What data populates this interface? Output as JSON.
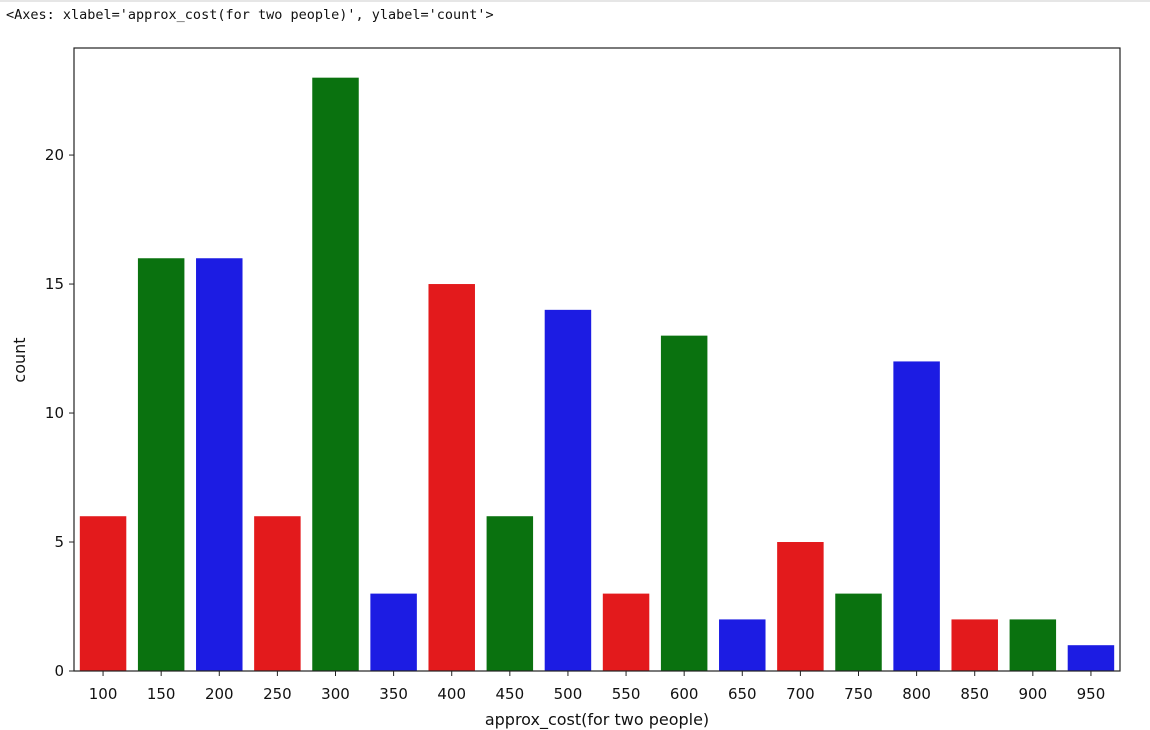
{
  "output_text": "<Axes: xlabel='approx_cost(for two people)', ylabel='count'>",
  "chart_data": {
    "type": "bar",
    "title": "",
    "xlabel": "approx_cost(for two people)",
    "ylabel": "count",
    "categories": [
      "100",
      "150",
      "200",
      "250",
      "300",
      "350",
      "400",
      "450",
      "500",
      "550",
      "600",
      "650",
      "700",
      "750",
      "800",
      "850",
      "900",
      "950"
    ],
    "values": [
      6,
      16,
      16,
      6,
      23,
      3,
      15,
      6,
      14,
      3,
      13,
      2,
      5,
      3,
      12,
      2,
      2,
      1
    ],
    "ylim": [
      0,
      24.15
    ],
    "yticks": [
      0,
      5,
      10,
      15,
      20
    ],
    "grid": false,
    "legend": "none",
    "palette": [
      "#e31a1c",
      "#0a720f",
      "#1c1ce3"
    ],
    "bar_colors": [
      "#e31a1c",
      "#0a720f",
      "#1c1ce3",
      "#e31a1c",
      "#0a720f",
      "#1c1ce3",
      "#e31a1c",
      "#0a720f",
      "#1c1ce3",
      "#e31a1c",
      "#0a720f",
      "#1c1ce3",
      "#e31a1c",
      "#0a720f",
      "#1c1ce3",
      "#e31a1c",
      "#0a720f",
      "#1c1ce3"
    ]
  }
}
